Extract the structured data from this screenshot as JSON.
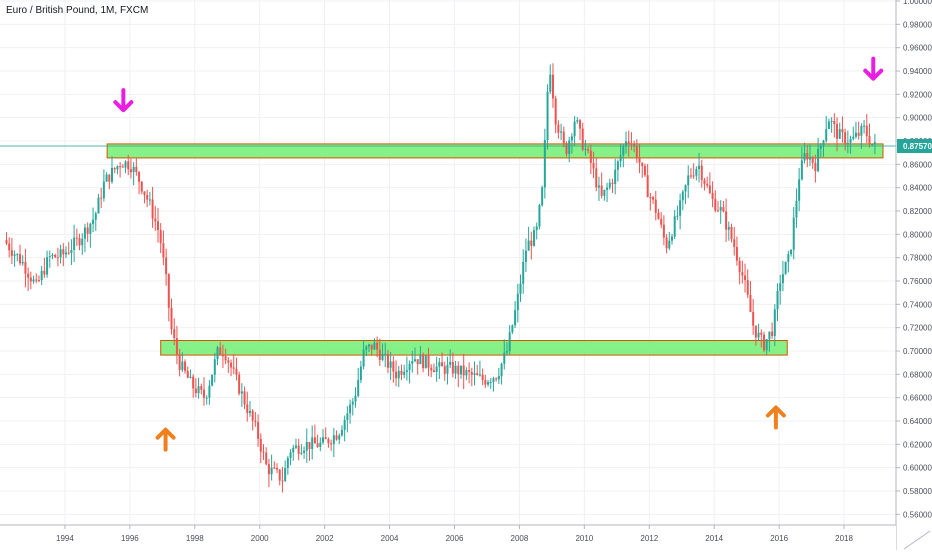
{
  "chart_data": {
    "type": "candlestick",
    "title": "Euro / British Pound, 1M, FXCM",
    "ylim": [
      0.55,
      1.0
    ],
    "xlim": [
      1992.0,
      2019.6
    ],
    "y_ticks": [
      0.56,
      0.58,
      0.6,
      0.62,
      0.64,
      0.66,
      0.68,
      0.7,
      0.72,
      0.74,
      0.76,
      0.78,
      0.8,
      0.82,
      0.84,
      0.86,
      0.88,
      0.9,
      0.92,
      0.94,
      0.96,
      0.98,
      1.0
    ],
    "y_tick_labels": [
      "0.56000",
      "0.58000",
      "0.60000",
      "0.62000",
      "0.64000",
      "0.66000",
      "0.68000",
      "0.70000",
      "0.72000",
      "0.74000",
      "0.76000",
      "0.78000",
      "0.80000",
      "0.82000",
      "0.84000",
      "0.86000",
      "0.88000",
      "0.90000",
      "0.92000",
      "0.94000",
      "0.96000",
      "0.98000",
      "1.00000"
    ],
    "x_ticks": [
      1994,
      1996,
      1998,
      2000,
      2002,
      2004,
      2006,
      2008,
      2010,
      2012,
      2014,
      2016,
      2018
    ],
    "x_tick_labels": [
      "1994",
      "1996",
      "1998",
      "2000",
      "2002",
      "2004",
      "2006",
      "2008",
      "2010",
      "2012",
      "2014",
      "2016",
      "2018"
    ],
    "grid": true,
    "last_price": 0.8757,
    "last_price_label": "0.87570",
    "price_path": [
      [
        1992.2,
        0.795
      ],
      [
        1992.8,
        0.775
      ],
      [
        1993.2,
        0.755
      ],
      [
        1993.6,
        0.78
      ],
      [
        1994.0,
        0.782
      ],
      [
        1994.5,
        0.795
      ],
      [
        1995.0,
        0.815
      ],
      [
        1995.3,
        0.845
      ],
      [
        1995.8,
        0.862
      ],
      [
        1996.1,
        0.86
      ],
      [
        1996.4,
        0.845
      ],
      [
        1996.7,
        0.825
      ],
      [
        1997.0,
        0.8
      ],
      [
        1997.2,
        0.76
      ],
      [
        1997.35,
        0.72
      ],
      [
        1997.6,
        0.69
      ],
      [
        1998.0,
        0.67
      ],
      [
        1998.4,
        0.66
      ],
      [
        1998.8,
        0.7
      ],
      [
        1999.0,
        0.7
      ],
      [
        1999.5,
        0.665
      ],
      [
        2000.0,
        0.63
      ],
      [
        2000.3,
        0.6
      ],
      [
        2000.8,
        0.59
      ],
      [
        2001.0,
        0.615
      ],
      [
        2001.5,
        0.62
      ],
      [
        2002.0,
        0.62
      ],
      [
        2002.5,
        0.63
      ],
      [
        2003.0,
        0.66
      ],
      [
        2003.3,
        0.7
      ],
      [
        2003.6,
        0.705
      ],
      [
        2004.0,
        0.69
      ],
      [
        2004.3,
        0.68
      ],
      [
        2004.8,
        0.695
      ],
      [
        2005.2,
        0.69
      ],
      [
        2005.6,
        0.685
      ],
      [
        2006.0,
        0.685
      ],
      [
        2006.5,
        0.68
      ],
      [
        2007.0,
        0.675
      ],
      [
        2007.4,
        0.68
      ],
      [
        2007.7,
        0.7
      ],
      [
        2008.0,
        0.74
      ],
      [
        2008.3,
        0.79
      ],
      [
        2008.6,
        0.8
      ],
      [
        2008.8,
        0.84
      ],
      [
        2009.0,
        0.95
      ],
      [
        2009.2,
        0.9
      ],
      [
        2009.5,
        0.87
      ],
      [
        2009.8,
        0.9
      ],
      [
        2010.0,
        0.88
      ],
      [
        2010.3,
        0.86
      ],
      [
        2010.6,
        0.83
      ],
      [
        2011.0,
        0.85
      ],
      [
        2011.4,
        0.885
      ],
      [
        2011.7,
        0.87
      ],
      [
        2012.0,
        0.84
      ],
      [
        2012.3,
        0.82
      ],
      [
        2012.6,
        0.79
      ],
      [
        2013.0,
        0.82
      ],
      [
        2013.3,
        0.85
      ],
      [
        2013.6,
        0.86
      ],
      [
        2014.0,
        0.83
      ],
      [
        2014.3,
        0.82
      ],
      [
        2014.7,
        0.79
      ],
      [
        2015.0,
        0.76
      ],
      [
        2015.3,
        0.72
      ],
      [
        2015.6,
        0.705
      ],
      [
        2015.9,
        0.72
      ],
      [
        2016.1,
        0.76
      ],
      [
        2016.4,
        0.78
      ],
      [
        2016.7,
        0.85
      ],
      [
        2016.9,
        0.87
      ],
      [
        2017.2,
        0.86
      ],
      [
        2017.6,
        0.9
      ],
      [
        2017.9,
        0.885
      ],
      [
        2018.3,
        0.88
      ],
      [
        2018.7,
        0.89
      ],
      [
        2019.0,
        0.875
      ]
    ],
    "zones": [
      {
        "y_low": 0.8655,
        "y_high": 0.8775,
        "x_start": 1995.3,
        "x_end": 2019.2,
        "color": "#7cf07c"
      },
      {
        "y_low": 0.6965,
        "y_high": 0.709,
        "x_start": 1996.95,
        "x_end": 2016.25,
        "color": "#7cf07c"
      }
    ],
    "annotations": [
      {
        "type": "arrow-down",
        "x": 1995.8,
        "y": 0.915,
        "color": "#e91ee0"
      },
      {
        "type": "arrow-down",
        "x": 2018.9,
        "y": 0.942,
        "color": "#e91ee0"
      },
      {
        "type": "arrow-up",
        "x": 1997.1,
        "y": 0.624,
        "color": "#f07f1e"
      },
      {
        "type": "arrow-up",
        "x": 2015.9,
        "y": 0.643,
        "color": "#f07f1e"
      }
    ],
    "colors": {
      "up": "#26a69a",
      "down": "#ef5350",
      "grid": "#eef0f3",
      "axis_text": "#4a4e59",
      "price_line": "#26a69a",
      "price_label_bg": "#26a69a",
      "zone_border": "#d35400"
    }
  }
}
